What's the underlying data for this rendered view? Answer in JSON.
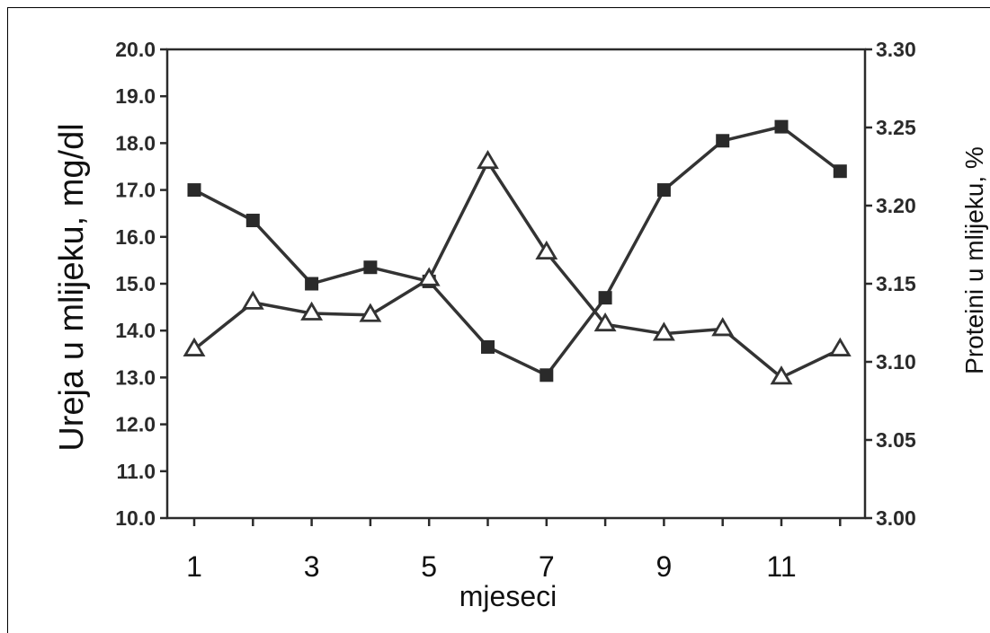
{
  "chart_data": {
    "type": "line",
    "xlabel": "mjeseci",
    "ylabel_left": "Ureja u mlijeku, mg/dl",
    "ylabel_right": "Proteini u mlijeku,  %",
    "x": [
      1,
      2,
      3,
      4,
      5,
      6,
      7,
      8,
      9,
      10,
      11,
      12
    ],
    "x_tick_labels": [
      "1",
      "3",
      "5",
      "7",
      "9",
      "11"
    ],
    "x_tick_values": [
      1,
      3,
      5,
      7,
      9,
      11
    ],
    "ylim_left": [
      10.0,
      20.0
    ],
    "ylim_right": [
      3.0,
      3.3
    ],
    "y_left_ticks": [
      "10.0",
      "11.0",
      "12.0",
      "13.0",
      "14.0",
      "15.0",
      "16.0",
      "17.0",
      "18.0",
      "19.0",
      "20.0"
    ],
    "y_right_ticks": [
      "3.00",
      "3.05",
      "3.10",
      "3.15",
      "3.20",
      "3.25",
      "3.30"
    ],
    "grid": false,
    "series": [
      {
        "marker": "square",
        "axis": "left",
        "color": "#333333",
        "values": [
          17.0,
          16.35,
          15.0,
          15.35,
          15.05,
          13.65,
          13.05,
          14.7,
          17.0,
          18.05,
          18.35,
          17.4
        ]
      },
      {
        "marker": "triangle-open",
        "axis": "right",
        "color": "#333333",
        "values": [
          3.108,
          3.138,
          3.131,
          3.13,
          3.153,
          3.228,
          3.17,
          3.124,
          3.118,
          3.121,
          3.09,
          3.108
        ]
      }
    ]
  }
}
